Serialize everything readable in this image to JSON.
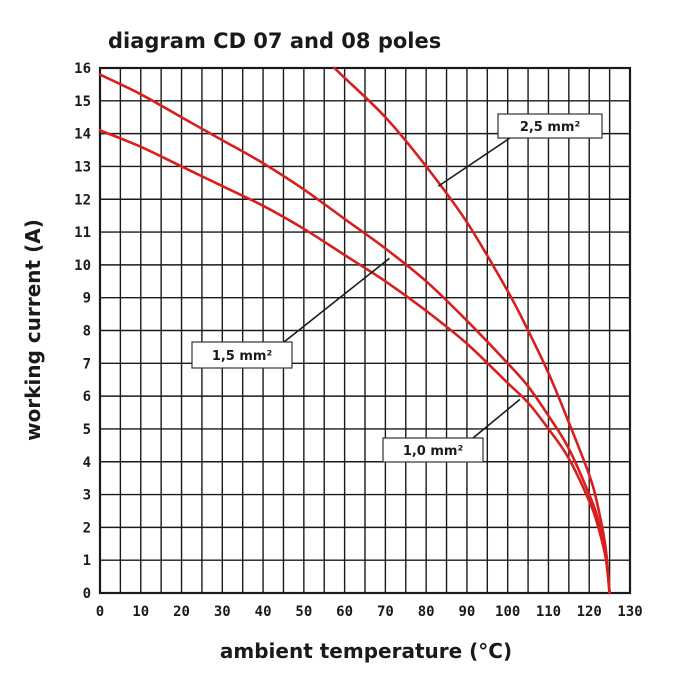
{
  "chart_data": {
    "type": "line",
    "title": "diagram CD 07 and 08 poles",
    "xlabel": "ambient temperature (°C)",
    "ylabel": "working current (A)",
    "xlim": [
      0,
      130
    ],
    "ylim": [
      0,
      16
    ],
    "grid": true,
    "x_ticks": [
      "0",
      "10",
      "20",
      "30",
      "40",
      "50",
      "60",
      "70",
      "80",
      "90",
      "100",
      "110",
      "120",
      "130"
    ],
    "y_ticks": [
      "0",
      "1",
      "2",
      "3",
      "4",
      "5",
      "6",
      "7",
      "8",
      "9",
      "10",
      "11",
      "12",
      "13",
      "14",
      "15",
      "16"
    ],
    "series": [
      {
        "name": "1,0 mm²",
        "color": "#d81e1e",
        "x": [
          0,
          10,
          20,
          30,
          40,
          50,
          60,
          70,
          80,
          90,
          100,
          105,
          110,
          115,
          120,
          122,
          124,
          125
        ],
        "y": [
          14.1,
          13.6,
          13.0,
          12.4,
          11.8,
          11.1,
          10.3,
          9.5,
          8.6,
          7.6,
          6.4,
          5.8,
          5.0,
          4.1,
          2.8,
          2.1,
          1.1,
          0
        ]
      },
      {
        "name": "1,5 mm²",
        "color": "#d81e1e",
        "x": [
          0,
          10,
          20,
          30,
          40,
          50,
          60,
          70,
          80,
          90,
          100,
          105,
          110,
          115,
          120,
          122,
          124,
          125
        ],
        "y": [
          15.8,
          15.2,
          14.5,
          13.8,
          13.1,
          12.3,
          11.4,
          10.5,
          9.5,
          8.3,
          7.0,
          6.3,
          5.4,
          4.4,
          3.0,
          2.3,
          1.2,
          0
        ]
      },
      {
        "name": "2,5 mm²",
        "color": "#d81e1e",
        "x": [
          57.5,
          60,
          70,
          80,
          90,
          100,
          105,
          110,
          115,
          120,
          122,
          124,
          125
        ],
        "y": [
          16.0,
          15.7,
          14.5,
          13.0,
          11.3,
          9.2,
          8.0,
          6.7,
          5.2,
          3.6,
          2.7,
          1.4,
          0
        ]
      }
    ],
    "annotations": [
      {
        "label": "2,5 mm²",
        "series": "2,5 mm²",
        "arrow_to": [
          83,
          12.4
        ]
      },
      {
        "label": "1,5 mm²",
        "series": "1,5 mm²",
        "arrow_to": [
          71,
          10.2
        ]
      },
      {
        "label": "1,0 mm²",
        "series": "1,0 mm²",
        "arrow_to": [
          103,
          5.9
        ]
      }
    ]
  }
}
